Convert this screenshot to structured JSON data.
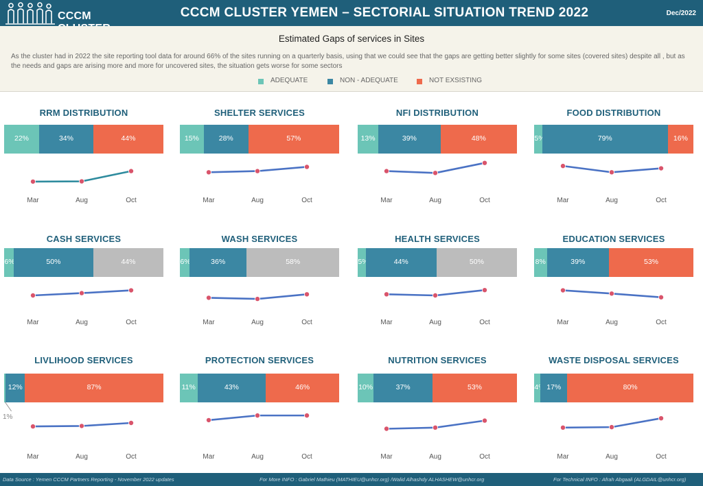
{
  "header": {
    "logo_text": "CCCM CLUSTER",
    "title": "CCCM CLUSTER YEMEN – SECTORIAL SITUATION TREND 2022",
    "date": "Dec/2022"
  },
  "info": {
    "subtitle": "Estimated Gaps of services in Sites",
    "description": "As the cluster had in 2022 the site reporting tool data for around 66% of the sites running on a quarterly basis, using that we could see that the gaps are getting better slightly for some sites (covered sites) despite all , but as the needs and gaps are arising more and more for uncovered sites, the situation gets worse for some sectors",
    "legend": [
      {
        "label": "ADEQUATE",
        "color": "#6cc5b7"
      },
      {
        "label": "NON - ADEQUATE",
        "color": "#3b87a3"
      },
      {
        "label": "NOT EXSISTING",
        "color": "#ee6a4c"
      }
    ]
  },
  "colors": {
    "adequate": "#6cc5b7",
    "non_adequate": "#3b87a3",
    "not_existing": "#ee6a4c",
    "gray": "#bcbcbc",
    "line_blue": "#4a72c4",
    "line_teal": "#2e8b9e",
    "marker": "#d9546b"
  },
  "chart_data": [
    {
      "type": "bar",
      "title": "RRM DISTRIBUTION",
      "stacked": true,
      "segments": [
        {
          "value": 22,
          "label": "22%",
          "color": "#6cc5b7"
        },
        {
          "value": 34,
          "label": "34%",
          "color": "#3b87a3"
        },
        {
          "value": 44,
          "label": "44%",
          "color": "#ee6a4c"
        }
      ],
      "trend": {
        "x": [
          "Mar",
          "Aug",
          "Oct"
        ],
        "y": [
          0.15,
          0.16,
          0.6
        ],
        "line_color": "#2e8b9e"
      }
    },
    {
      "type": "bar",
      "title": "SHELTER SERVICES",
      "stacked": true,
      "segments": [
        {
          "value": 15,
          "label": "15%",
          "color": "#6cc5b7"
        },
        {
          "value": 28,
          "label": "28%",
          "color": "#3b87a3"
        },
        {
          "value": 57,
          "label": "57%",
          "color": "#ee6a4c"
        }
      ],
      "trend": {
        "x": [
          "Mar",
          "Aug",
          "Oct"
        ],
        "y": [
          0.55,
          0.6,
          0.78
        ],
        "line_color": "#4a72c4"
      }
    },
    {
      "type": "bar",
      "title": "NFI DISTRIBUTION",
      "stacked": true,
      "segments": [
        {
          "value": 13,
          "label": "13%",
          "color": "#6cc5b7"
        },
        {
          "value": 39,
          "label": "39%",
          "color": "#3b87a3"
        },
        {
          "value": 48,
          "label": "48%",
          "color": "#ee6a4c"
        }
      ],
      "trend": {
        "x": [
          "Mar",
          "Aug",
          "Oct"
        ],
        "y": [
          0.6,
          0.52,
          0.95
        ],
        "line_color": "#4a72c4"
      }
    },
    {
      "type": "bar",
      "title": "FOOD DISTRIBUTION",
      "stacked": true,
      "segments": [
        {
          "value": 5,
          "label": "5%",
          "color": "#6cc5b7"
        },
        {
          "value": 79,
          "label": "79%",
          "color": "#3b87a3"
        },
        {
          "value": 16,
          "label": "16%",
          "color": "#ee6a4c"
        }
      ],
      "trend": {
        "x": [
          "Mar",
          "Aug",
          "Oct"
        ],
        "y": [
          0.82,
          0.55,
          0.72
        ],
        "line_color": "#4a72c4"
      }
    },
    {
      "type": "bar",
      "title": "CASH SERVICES",
      "stacked": true,
      "segments": [
        {
          "value": 6,
          "label": "6%",
          "color": "#6cc5b7"
        },
        {
          "value": 50,
          "label": "50%",
          "color": "#3b87a3"
        },
        {
          "value": 44,
          "label": "44%",
          "color": "#bcbcbc"
        }
      ],
      "trend": {
        "x": [
          "Mar",
          "Aug",
          "Oct"
        ],
        "y": [
          0.5,
          0.6,
          0.72
        ],
        "line_color": "#4a72c4"
      }
    },
    {
      "type": "bar",
      "title": "WASH SERVICES",
      "stacked": true,
      "segments": [
        {
          "value": 6,
          "label": "6%",
          "color": "#6cc5b7"
        },
        {
          "value": 36,
          "label": "36%",
          "color": "#3b87a3"
        },
        {
          "value": 58,
          "label": "58%",
          "color": "#bcbcbc"
        }
      ],
      "trend": {
        "x": [
          "Mar",
          "Aug",
          "Oct"
        ],
        "y": [
          0.4,
          0.35,
          0.55
        ],
        "line_color": "#4a72c4"
      }
    },
    {
      "type": "bar",
      "title": "HEALTH SERVICES",
      "stacked": true,
      "segments": [
        {
          "value": 5,
          "label": "5%",
          "color": "#6cc5b7"
        },
        {
          "value": 44,
          "label": "44%",
          "color": "#3b87a3"
        },
        {
          "value": 50,
          "label": "50%",
          "color": "#bcbcbc"
        }
      ],
      "trend": {
        "x": [
          "Mar",
          "Aug",
          "Oct"
        ],
        "y": [
          0.55,
          0.5,
          0.73
        ],
        "line_color": "#4a72c4"
      }
    },
    {
      "type": "bar",
      "title": "EDUCATION SERVICES",
      "stacked": true,
      "segments": [
        {
          "value": 8,
          "label": "8%",
          "color": "#6cc5b7"
        },
        {
          "value": 39,
          "label": "39%",
          "color": "#3b87a3"
        },
        {
          "value": 53,
          "label": "53%",
          "color": "#ee6a4c"
        }
      ],
      "trend": {
        "x": [
          "Mar",
          "Aug",
          "Oct"
        ],
        "y": [
          0.72,
          0.58,
          0.42
        ],
        "line_color": "#4a72c4"
      }
    },
    {
      "type": "bar",
      "title": "LIVLIHOOD SERVICES",
      "stacked": true,
      "segments": [
        {
          "value": 1,
          "label": "1%",
          "color": "#6cc5b7"
        },
        {
          "value": 12,
          "label": "12%",
          "color": "#3b87a3"
        },
        {
          "value": 87,
          "label": "87%",
          "color": "#ee6a4c"
        }
      ],
      "trend": {
        "x": [
          "Mar",
          "Aug",
          "Oct"
        ],
        "y": [
          0.35,
          0.37,
          0.5
        ],
        "line_color": "#4a72c4"
      }
    },
    {
      "type": "bar",
      "title": "PROTECTION SERVICES",
      "stacked": true,
      "segments": [
        {
          "value": 11,
          "label": "11%",
          "color": "#6cc5b7"
        },
        {
          "value": 43,
          "label": "43%",
          "color": "#3b87a3"
        },
        {
          "value": 46,
          "label": "46%",
          "color": "#ee6a4c"
        }
      ],
      "trend": {
        "x": [
          "Mar",
          "Aug",
          "Oct"
        ],
        "y": [
          0.62,
          0.82,
          0.82
        ],
        "line_color": "#4a72c4"
      }
    },
    {
      "type": "bar",
      "title": "NUTRITION SERVICES",
      "stacked": true,
      "segments": [
        {
          "value": 10,
          "label": "10%",
          "color": "#6cc5b7"
        },
        {
          "value": 37,
          "label": "37%",
          "color": "#3b87a3"
        },
        {
          "value": 53,
          "label": "53%",
          "color": "#ee6a4c"
        }
      ],
      "trend": {
        "x": [
          "Mar",
          "Aug",
          "Oct"
        ],
        "y": [
          0.25,
          0.3,
          0.6
        ],
        "line_color": "#4a72c4"
      }
    },
    {
      "type": "bar",
      "title": "WASTE DISPOSAL SERVICES",
      "stacked": true,
      "segments": [
        {
          "value": 4,
          "label": "4%",
          "color": "#6cc5b7"
        },
        {
          "value": 17,
          "label": "17%",
          "color": "#3b87a3"
        },
        {
          "value": 80,
          "label": "80%",
          "color": "#ee6a4c"
        }
      ],
      "trend": {
        "x": [
          "Mar",
          "Aug",
          "Oct"
        ],
        "y": [
          0.3,
          0.32,
          0.7
        ],
        "line_color": "#4a72c4"
      }
    }
  ],
  "footer": {
    "source": "Data Source : Yemen CCCM Partners Reporting - November 2022 updates",
    "more_info": "For More INFO : Gabriel Mathieu (MATHIEU@unhcr.org) /Walid Alhashdy ALHASHEW@unhcr.org",
    "technical_info": "For Technical INFO : Afrah Abgaali (ALGDAIL@unhcr.org)"
  }
}
